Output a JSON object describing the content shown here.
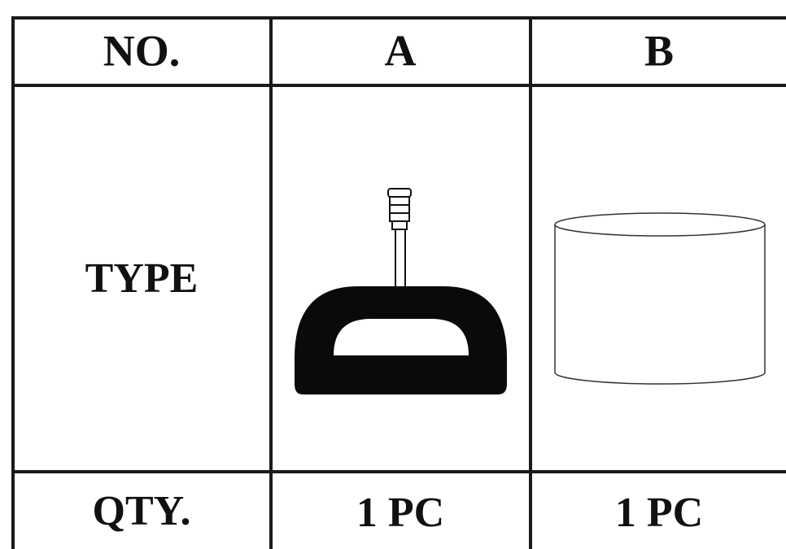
{
  "table": {
    "header": [
      "NO.",
      "A",
      "B"
    ],
    "type_label": "TYPE",
    "qty_row": [
      "QTY.",
      "1 PC",
      "1 PC"
    ]
  }
}
